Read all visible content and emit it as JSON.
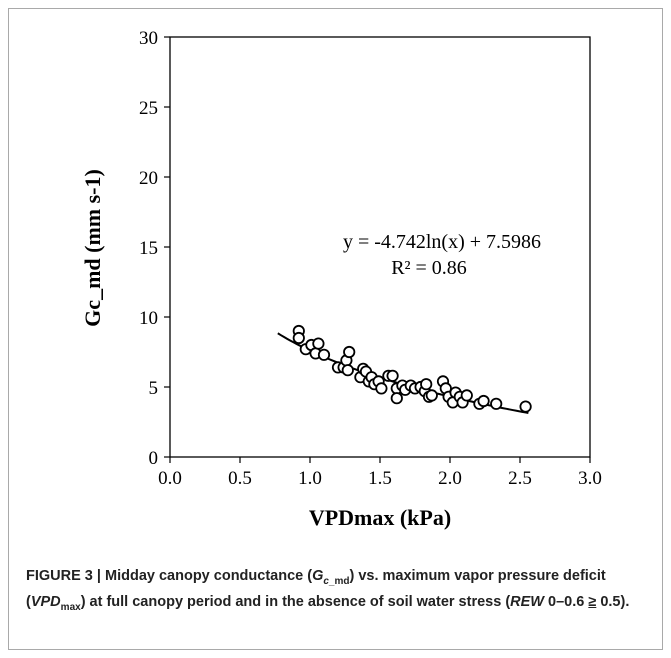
{
  "chart_data": {
    "type": "scatter",
    "xlabel": "VPDmax (kPa)",
    "ylabel": "Gc_md (mm s-1)",
    "xlim": [
      0,
      3
    ],
    "ylim": [
      0,
      30
    ],
    "xticks": [
      "0.0",
      "0.5",
      "1.0",
      "1.5",
      "2.0",
      "2.5",
      "3.0"
    ],
    "yticks": [
      "0",
      "5",
      "10",
      "15",
      "20",
      "25",
      "30"
    ],
    "equation": "y = -4.742ln(x) + 7.5986",
    "r_squared": "R² = 0.86",
    "fit": {
      "type": "logarithmic",
      "a": -4.742,
      "b": 7.5986,
      "x_range": [
        0.77,
        2.56
      ]
    },
    "grid": false,
    "legend": "none",
    "colors": {
      "axis": "#000000",
      "marker_edge": "#000000",
      "marker_fill": "#ffffff",
      "frame": "#a9a9a9"
    },
    "points": [
      {
        "x": 0.92,
        "y": 9.0
      },
      {
        "x": 0.92,
        "y": 8.5
      },
      {
        "x": 0.97,
        "y": 7.7
      },
      {
        "x": 1.01,
        "y": 8.0
      },
      {
        "x": 1.04,
        "y": 7.4
      },
      {
        "x": 1.06,
        "y": 8.1
      },
      {
        "x": 1.1,
        "y": 7.3
      },
      {
        "x": 1.2,
        "y": 6.4
      },
      {
        "x": 1.24,
        "y": 6.4
      },
      {
        "x": 1.26,
        "y": 6.9
      },
      {
        "x": 1.28,
        "y": 7.5
      },
      {
        "x": 1.27,
        "y": 6.2
      },
      {
        "x": 1.36,
        "y": 5.7
      },
      {
        "x": 1.38,
        "y": 6.3
      },
      {
        "x": 1.4,
        "y": 6.1
      },
      {
        "x": 1.42,
        "y": 5.4
      },
      {
        "x": 1.44,
        "y": 5.7
      },
      {
        "x": 1.46,
        "y": 5.2
      },
      {
        "x": 1.49,
        "y": 5.4
      },
      {
        "x": 1.51,
        "y": 4.9
      },
      {
        "x": 1.56,
        "y": 5.8
      },
      {
        "x": 1.59,
        "y": 5.8
      },
      {
        "x": 1.62,
        "y": 4.9
      },
      {
        "x": 1.62,
        "y": 4.2
      },
      {
        "x": 1.66,
        "y": 5.1
      },
      {
        "x": 1.68,
        "y": 4.8
      },
      {
        "x": 1.72,
        "y": 5.1
      },
      {
        "x": 1.75,
        "y": 4.9
      },
      {
        "x": 1.79,
        "y": 5.0
      },
      {
        "x": 1.82,
        "y": 4.7
      },
      {
        "x": 1.83,
        "y": 5.2
      },
      {
        "x": 1.85,
        "y": 4.3
      },
      {
        "x": 1.87,
        "y": 4.4
      },
      {
        "x": 1.95,
        "y": 5.4
      },
      {
        "x": 1.97,
        "y": 4.9
      },
      {
        "x": 1.99,
        "y": 4.3
      },
      {
        "x": 2.02,
        "y": 3.9
      },
      {
        "x": 2.04,
        "y": 4.6
      },
      {
        "x": 2.07,
        "y": 4.3
      },
      {
        "x": 2.09,
        "y": 3.9
      },
      {
        "x": 2.12,
        "y": 4.4
      },
      {
        "x": 2.21,
        "y": 3.8
      },
      {
        "x": 2.24,
        "y": 4.0
      },
      {
        "x": 2.33,
        "y": 3.8
      },
      {
        "x": 2.54,
        "y": 3.6
      }
    ]
  },
  "caption": {
    "figure_label": "FIGURE 3 |",
    "segments": [
      {
        "text": " Midday canopy conductance (",
        "style": "b"
      },
      {
        "text": "G",
        "style": "bi"
      },
      {
        "text": "c",
        "style": "bi-sub"
      },
      {
        "text": "_md",
        "style": "b-sub"
      },
      {
        "text": ") vs. maximum vapor pressure deficit (",
        "style": "b"
      },
      {
        "text": "VPD",
        "style": "bi"
      },
      {
        "text": "max",
        "style": "b-sub"
      },
      {
        "text": ") at full canopy period and in the absence of soil water stress (",
        "style": "b"
      },
      {
        "text": "REW",
        "style": "bi"
      },
      {
        "text": " 0–0.6 ",
        "style": "b"
      },
      {
        "text": "≥",
        "style": "b-u"
      },
      {
        "text": " 0.5).",
        "style": "b"
      }
    ]
  }
}
